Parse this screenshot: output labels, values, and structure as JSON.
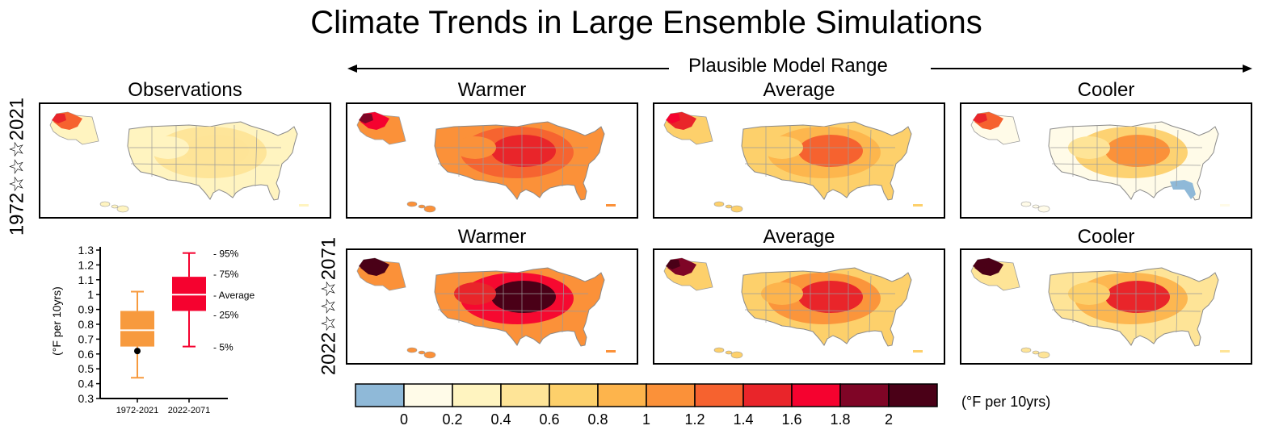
{
  "title": "Climate Trends in Large Ensemble Simulations",
  "range_label": "Plausible Model Range",
  "row_labels": [
    "1972☆☆☆2021",
    "2022☆☆☆2071"
  ],
  "observations_title": "Observations",
  "panel_titles": [
    "Warmer",
    "Average",
    "Cooler"
  ],
  "colorbar": {
    "unit": "(°F per 10yrs)",
    "tick_labels": [
      "0",
      "0.2",
      "0.4",
      "0.6",
      "0.8",
      "1",
      "1.2",
      "1.4",
      "1.6",
      "1.8",
      "2"
    ],
    "colors": [
      "#8fb9d8",
      "#fffbe8",
      "#fff4c0",
      "#fee497",
      "#fdd06b",
      "#fdb44c",
      "#fb9139",
      "#f6622f",
      "#e9252a",
      "#f5022f",
      "#7f0526",
      "#4a0017"
    ]
  },
  "maps": [
    {
      "row": 0,
      "col": "obs",
      "levels": {
        "ak": 7,
        "bg": 2,
        "hot": 3,
        "warm": 3
      }
    },
    {
      "row": 0,
      "col": "warmer",
      "levels": {
        "ak": 9,
        "bg": 6,
        "hot": 8,
        "warm": 7
      }
    },
    {
      "row": 0,
      "col": "average",
      "levels": {
        "ak": 8,
        "bg": 4,
        "hot": 7,
        "warm": 5
      }
    },
    {
      "row": 0,
      "col": "cooler",
      "levels": {
        "ak": 7,
        "bg": 1,
        "hot": 6,
        "warm": 4,
        "cool": 0
      }
    },
    {
      "row": 1,
      "col": "warmer",
      "levels": {
        "ak": 11,
        "bg": 6,
        "hot": 11,
        "warm": 9
      }
    },
    {
      "row": 1,
      "col": "average",
      "levels": {
        "ak": 10,
        "bg": 4,
        "hot": 8,
        "warm": 6
      }
    },
    {
      "row": 1,
      "col": "cooler",
      "levels": {
        "ak": 11,
        "bg": 3,
        "hot": 8,
        "warm": 5
      }
    }
  ],
  "chart_data": {
    "type": "box",
    "ylabel": "(°F per 10yrs)",
    "ylim": [
      0.3,
      1.3
    ],
    "yticks": [
      "0.3",
      "0.4",
      "0.5",
      "0.6",
      "0.7",
      "0.8",
      "0.9",
      "1",
      "1.1",
      "1.2",
      "1.3"
    ],
    "categories": [
      "1972-2021",
      "2022-2071"
    ],
    "boxes": [
      {
        "category": "1972-2021",
        "p5": 0.44,
        "p25": 0.65,
        "avg": 0.76,
        "p75": 0.89,
        "p95": 1.02,
        "observed": 0.62,
        "color": "#f79a3e"
      },
      {
        "category": "2022-2071",
        "p5": 0.65,
        "p25": 0.89,
        "avg": 1.0,
        "p75": 1.12,
        "p95": 1.28,
        "color": "#f5022f"
      }
    ],
    "annotations": [
      "- 95%",
      "- 75%",
      "- Average",
      "- 25%",
      "- 5%"
    ]
  }
}
